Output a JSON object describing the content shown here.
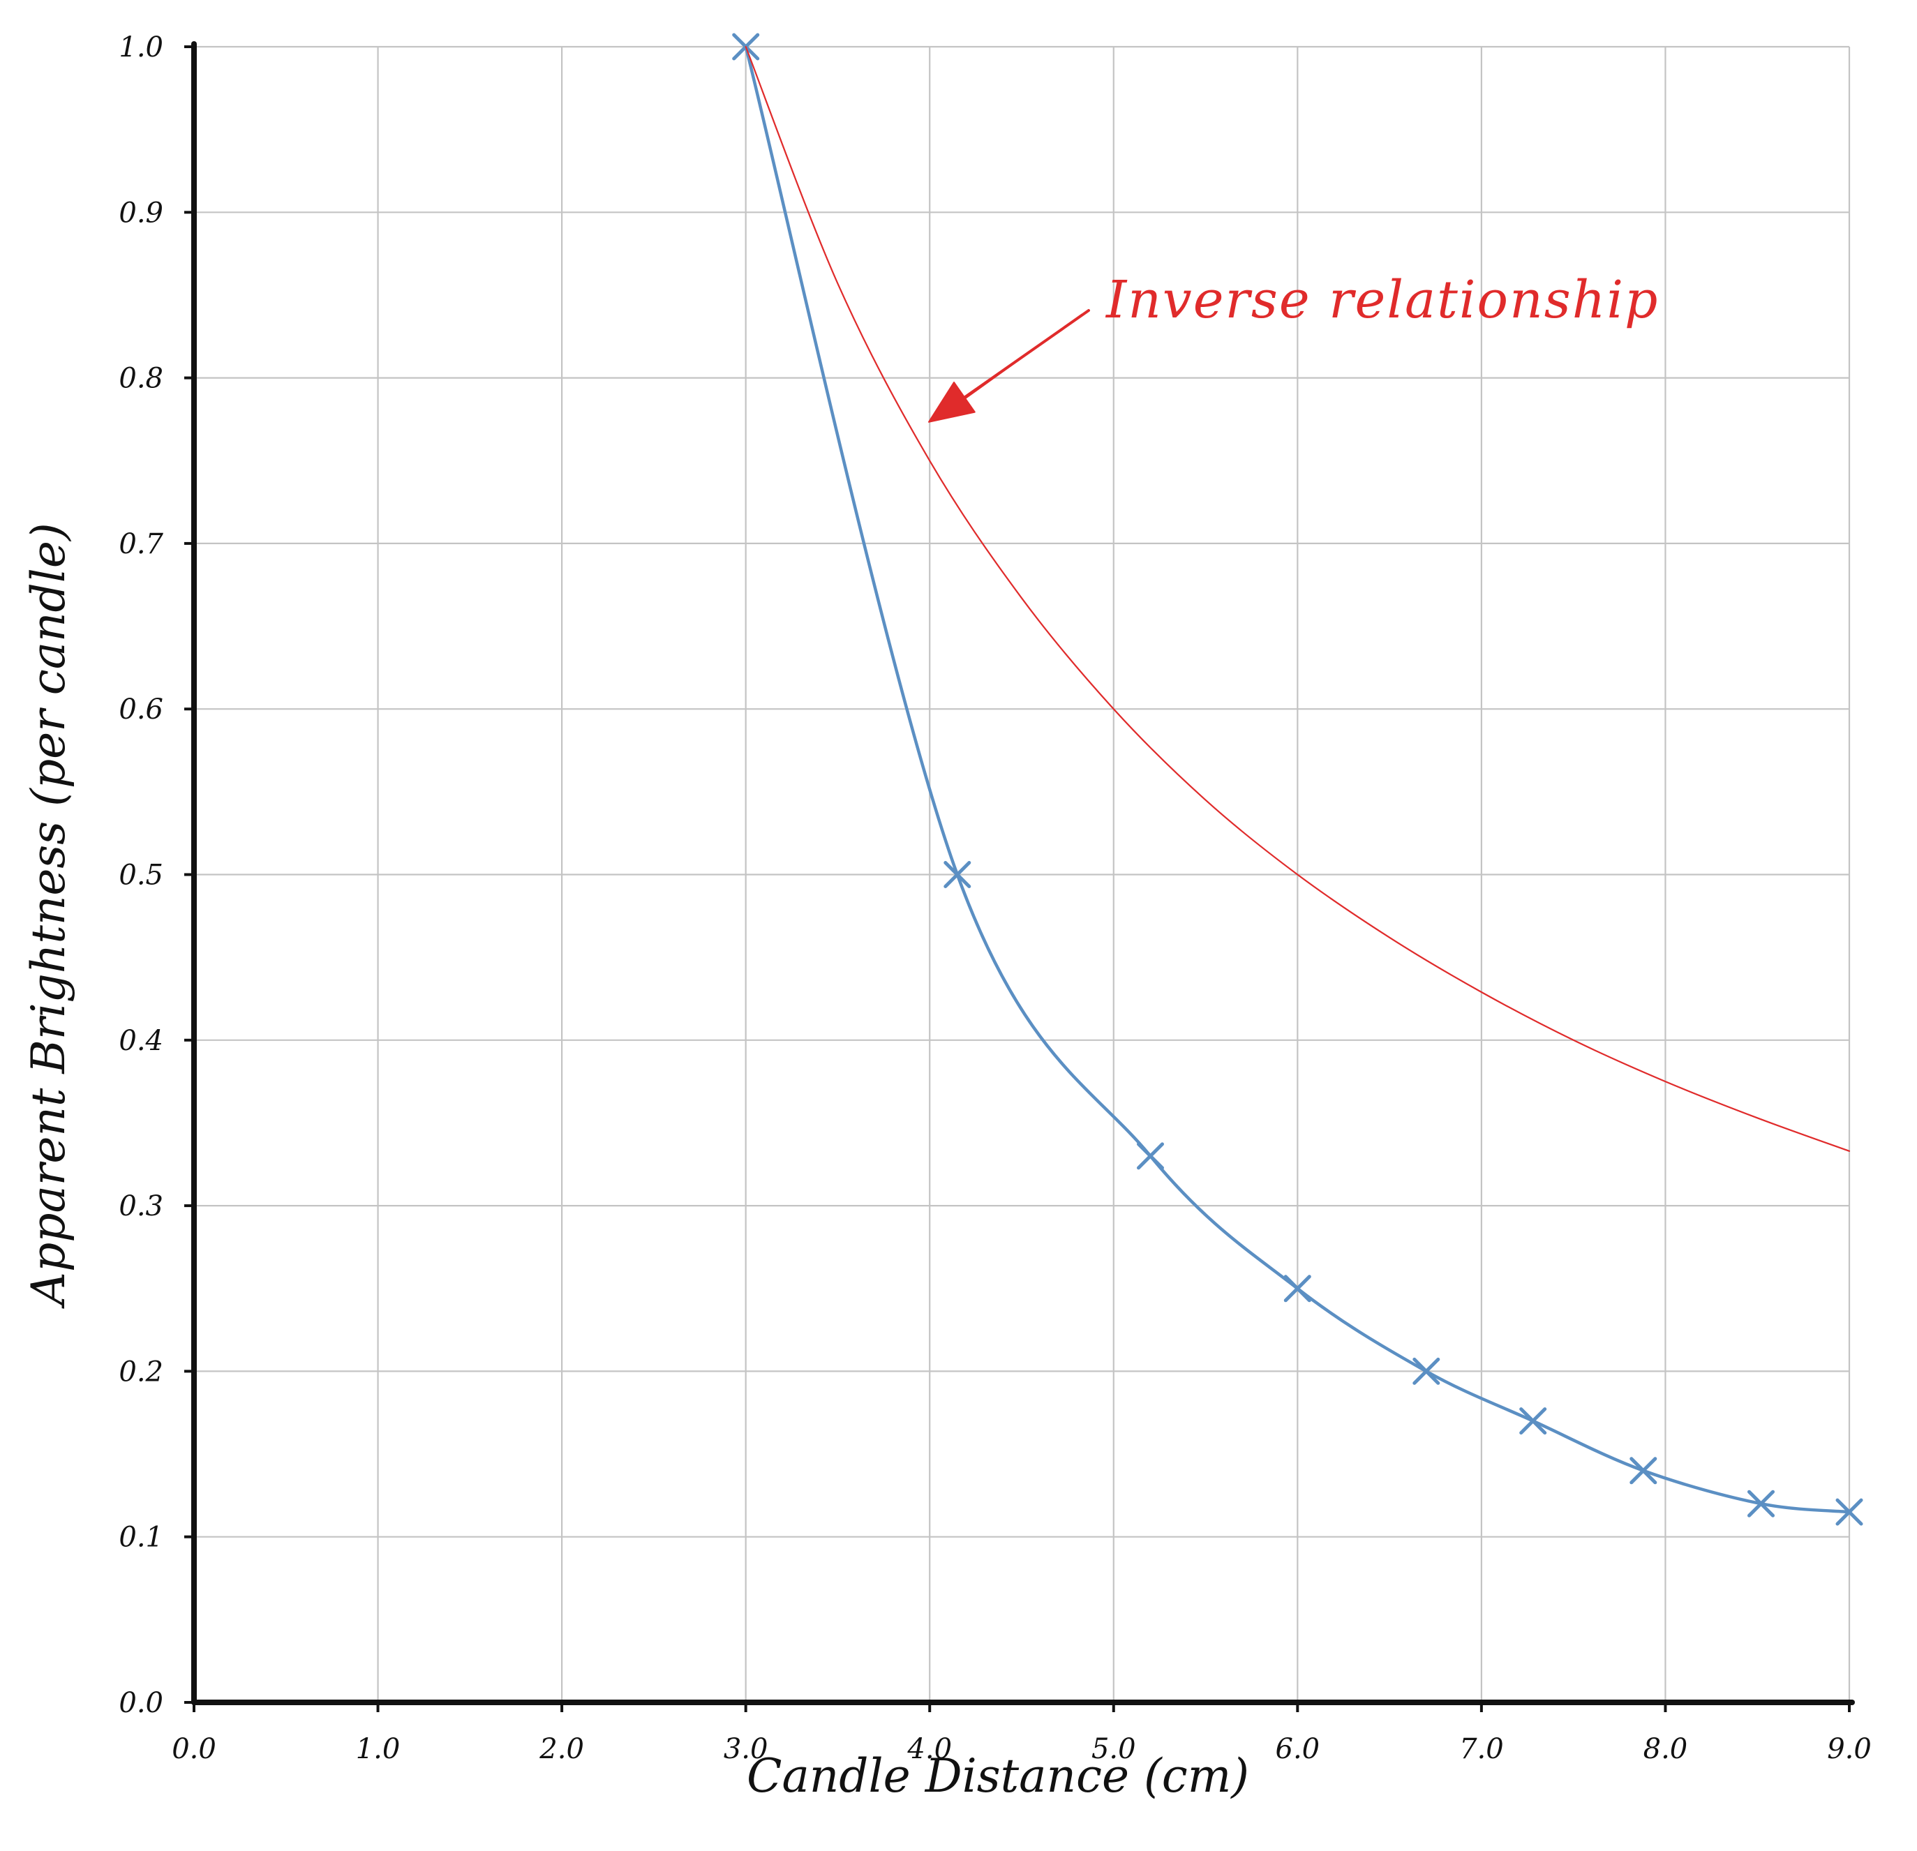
{
  "colors": {
    "background": "#ffffff",
    "grid": "#c4c4c4",
    "axis": "#111111",
    "measured": "#5b8fc3",
    "inverse": "#e02b2b"
  },
  "chart_data": {
    "type": "line",
    "title": "",
    "xlabel": "Candle Distance (cm)",
    "ylabel": "Apparent Brightness (per candle)",
    "xlim": [
      0,
      9
    ],
    "ylim": [
      0,
      1
    ],
    "grid": true,
    "x_ticks": [
      "0.0",
      "1.0",
      "2.0",
      "3.0",
      "4.0",
      "5.0",
      "6.0",
      "7.0",
      "8.0",
      "9.0"
    ],
    "y_ticks": [
      "0.0",
      "0.1",
      "0.2",
      "0.3",
      "0.4",
      "0.5",
      "0.6",
      "0.7",
      "0.8",
      "0.9",
      "1.0"
    ],
    "series": [
      {
        "style": "line+x-markers",
        "color": "#5b8fc3",
        "x": [
          3.0,
          4.15,
          5.2,
          6.0,
          6.7,
          7.28,
          7.88,
          8.52,
          9.0
        ],
        "y": [
          1.0,
          0.5,
          0.33,
          0.25,
          0.2,
          0.17,
          0.14,
          0.12,
          0.115
        ]
      },
      {
        "style": "line",
        "color": "#e02b2b",
        "x": [
          3.0,
          3.5,
          4.0,
          4.5,
          5.0,
          5.5,
          6.0,
          6.5,
          7.0,
          7.5,
          8.0,
          8.5,
          9.0
        ],
        "y": [
          1.0,
          0.857,
          0.75,
          0.667,
          0.6,
          0.545,
          0.5,
          0.462,
          0.429,
          0.4,
          0.375,
          0.353,
          0.333
        ]
      }
    ],
    "annotations": [
      {
        "text": "Inverse relationship",
        "color": "#e02b2b",
        "arrow_to": [
          3.95,
          0.77
        ]
      }
    ]
  }
}
